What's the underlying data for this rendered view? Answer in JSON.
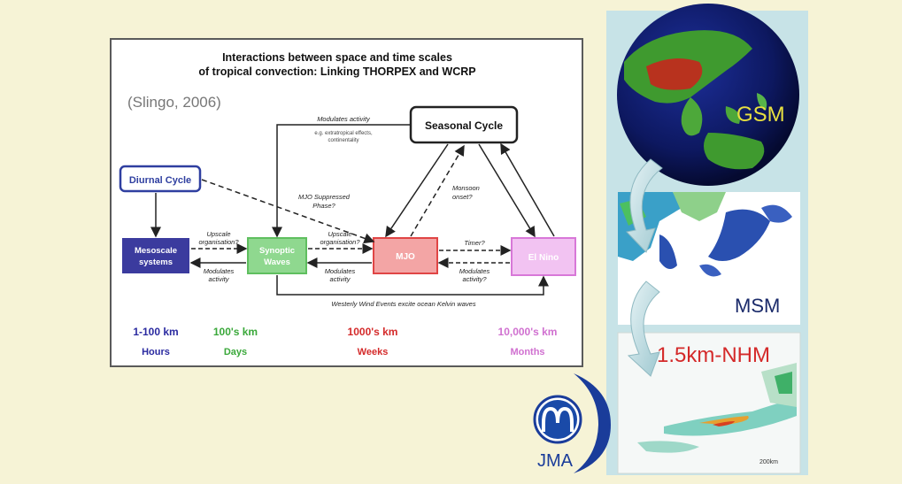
{
  "diagram": {
    "title_line1": "Interactions between space and time scales",
    "title_line2": "of tropical convection: Linking THORPEX and WCRP",
    "citation": "(Slingo, 2006)",
    "nodes": {
      "seasonal_cycle": "Seasonal Cycle",
      "diurnal_cycle": "Diurnal Cycle",
      "mesoscale_line1": "Mesoscale",
      "mesoscale_line2": "systems",
      "synoptic_line1": "Synoptic",
      "synoptic_line2": "Waves",
      "mjo": "MJO",
      "el_nino": "El Nino"
    },
    "labels": {
      "modulates_activity_top": "Modulates activity",
      "extratropical_line1": "e.g. extratropical effects,",
      "extratropical_line2": "continentality",
      "mjo_suppressed_line1": "MJO Suppressed",
      "mjo_suppressed_line2": "Phase?",
      "monsoon_line1": "Monsoon",
      "monsoon_line2": "onset?",
      "upscale1_line1": "Upscale",
      "upscale1_line2": "organisation?",
      "modulates1_line1": "Modulates",
      "modulates1_line2": "activity",
      "upscale2_line1": "Upscale",
      "upscale2_line2": "organisation?",
      "modulates2_line1": "Modulates",
      "modulates2_line2": "activity",
      "timer": "Timer?",
      "modulates3_line1": "Modulates",
      "modulates3_line2": "activity?",
      "westerly": "Westerly Wind Events excite ocean Kelvin waves"
    },
    "scales": [
      {
        "space": "1-100 km",
        "time": "Hours",
        "color": "#2a2aa0"
      },
      {
        "space": "100's km",
        "time": "Days",
        "color": "#3aa83a"
      },
      {
        "space": "1000's km",
        "time": "Weeks",
        "color": "#d42a2a"
      },
      {
        "space": "10,000's km",
        "time": "Months",
        "color": "#c040c0"
      }
    ]
  },
  "models": {
    "gsm": "GSM",
    "msm": "MSM",
    "nhm": "1.5km-NHM",
    "scale_label": "200km"
  },
  "logo": {
    "text": "JMA"
  },
  "colors": {
    "mesoscale": "#3b3b9e",
    "synoptic": "#5fbf5f",
    "mjo": "#e04545",
    "el_nino": "#d878d8",
    "diurnal_border": "#2f3fa0"
  }
}
